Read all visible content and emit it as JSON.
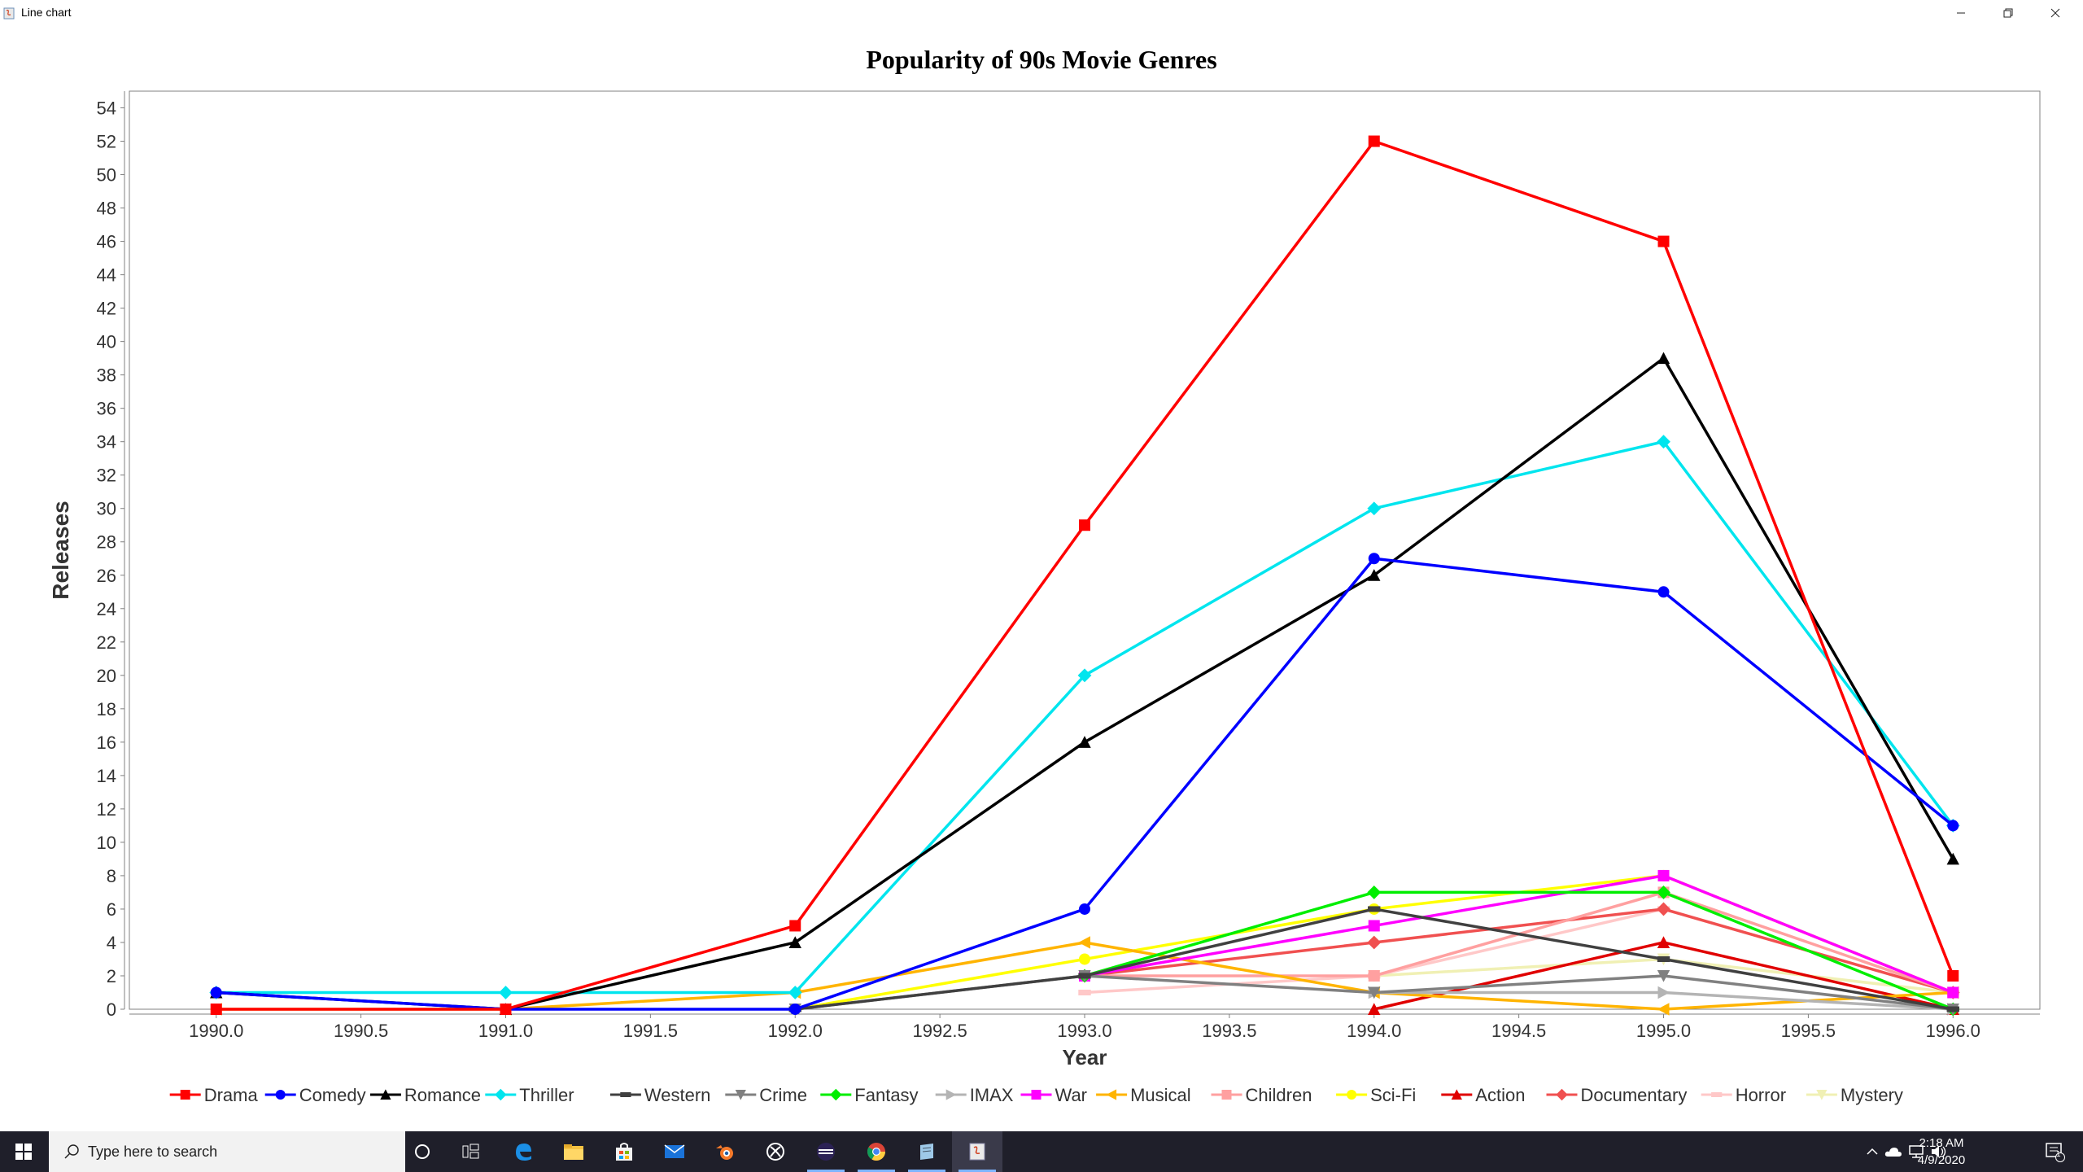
{
  "window": {
    "title": "Line chart",
    "minimize_icon": "minimize-icon",
    "restore_icon": "restore-icon",
    "close_icon": "close-icon"
  },
  "chart_data": {
    "type": "line",
    "title": "Popularity of 90s Movie Genres",
    "xlabel": "Year",
    "ylabel": "Releases",
    "xlim": [
      1989.7,
      1996.3
    ],
    "ylim": [
      0,
      55
    ],
    "x_ticks": [
      "1990.0",
      "1990.5",
      "1991.0",
      "1991.5",
      "1992.0",
      "1992.5",
      "1993.0",
      "1993.5",
      "1994.0",
      "1994.5",
      "1995.0",
      "1995.5",
      "1996.0"
    ],
    "y_ticks": [
      "0",
      "2",
      "4",
      "6",
      "8",
      "10",
      "12",
      "14",
      "16",
      "18",
      "20",
      "22",
      "24",
      "26",
      "28",
      "30",
      "32",
      "34",
      "36",
      "38",
      "40",
      "42",
      "44",
      "46",
      "48",
      "50",
      "52",
      "54"
    ],
    "x": [
      1990,
      1991,
      1992,
      1993,
      1994,
      1995,
      1996
    ],
    "grid": false,
    "legend_position": "bottom",
    "series": [
      {
        "name": "Drama",
        "color": "#ff0000",
        "marker": "square",
        "values": [
          0,
          0,
          5,
          29,
          52,
          46,
          2
        ]
      },
      {
        "name": "Comedy",
        "color": "#0000ff",
        "marker": "circle",
        "values": [
          1,
          0,
          0,
          6,
          27,
          25,
          11
        ]
      },
      {
        "name": "Romance",
        "color": "#000000",
        "marker": "triangle-up",
        "values": [
          1,
          0,
          4,
          16,
          26,
          39,
          9
        ]
      },
      {
        "name": "Thriller",
        "color": "#00e5ee",
        "marker": "diamond",
        "values": [
          1,
          1,
          1,
          20,
          30,
          34,
          11
        ]
      },
      {
        "name": "Western",
        "color": "#404040",
        "marker": "rect",
        "values": [
          null,
          null,
          0,
          2,
          6,
          3,
          0
        ]
      },
      {
        "name": "Crime",
        "color": "#808080",
        "marker": "triangle-down",
        "values": [
          null,
          null,
          0,
          2,
          1,
          2,
          0
        ]
      },
      {
        "name": "Fantasy",
        "color": "#00ee00",
        "marker": "diamond",
        "values": [
          null,
          null,
          null,
          2,
          7,
          7,
          0
        ]
      },
      {
        "name": "IMAX",
        "color": "#b4b4b4",
        "marker": "triangle-right",
        "values": [
          null,
          null,
          null,
          null,
          1,
          1,
          0
        ]
      },
      {
        "name": "War",
        "color": "#ff00ff",
        "marker": "square",
        "values": [
          null,
          null,
          null,
          2,
          5,
          8,
          1
        ]
      },
      {
        "name": "Musical",
        "color": "#ffb400",
        "marker": "triangle-left",
        "values": [
          0,
          0,
          1,
          4,
          1,
          0,
          1
        ]
      },
      {
        "name": "Children",
        "color": "#ffa0a0",
        "marker": "square",
        "values": [
          null,
          null,
          null,
          2,
          2,
          7,
          1
        ]
      },
      {
        "name": "Sci-Fi",
        "color": "#ffff00",
        "marker": "circle",
        "values": [
          null,
          null,
          0,
          3,
          6,
          8,
          1
        ]
      },
      {
        "name": "Action",
        "color": "#e00000",
        "marker": "triangle-up",
        "values": [
          null,
          null,
          null,
          null,
          0,
          4,
          0
        ]
      },
      {
        "name": "Documentary",
        "color": "#f05050",
        "marker": "diamond",
        "values": [
          null,
          null,
          null,
          2,
          4,
          6,
          1
        ]
      },
      {
        "name": "Horror",
        "color": "#ffc8c8",
        "marker": "rect",
        "values": [
          null,
          null,
          null,
          1,
          2,
          6,
          1
        ]
      },
      {
        "name": "Mystery",
        "color": "#f0f0b4",
        "marker": "triangle-down",
        "values": [
          null,
          null,
          null,
          null,
          2,
          3,
          1
        ]
      }
    ]
  },
  "taskbar": {
    "search_placeholder": "Type here to search",
    "time": "2:18 AM",
    "date": "4/9/2020",
    "notification_count": "1"
  }
}
